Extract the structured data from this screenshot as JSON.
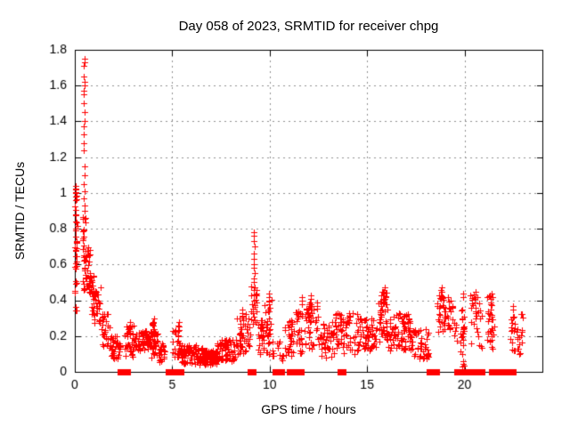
{
  "chart_data": {
    "type": "scatter",
    "title": "Day 058 of 2023, SRMTID for receiver chpg",
    "xlabel": "GPS time / hours",
    "ylabel": "SRMTID / TECUs",
    "series_name": "SRMTID",
    "xlim": [
      0,
      24
    ],
    "ylim": [
      0,
      1.8
    ],
    "xticks": [
      0,
      5,
      10,
      15,
      20
    ],
    "xtick_labels": [
      "0",
      "5",
      "10",
      "15",
      "20"
    ],
    "yticks": [
      0,
      0.2,
      0.4,
      0.6,
      0.8,
      1,
      1.2,
      1.4,
      1.6,
      1.8
    ],
    "ytick_labels": [
      "0",
      "0.2",
      "0.4",
      "0.6",
      "0.8",
      "1",
      "1.2",
      "1.4",
      "1.6",
      "1.8"
    ],
    "grid": true,
    "grid_style": "dashed",
    "grid_color": "#909090",
    "legend": "none",
    "marker": "plus",
    "marker_color": "#ff0000",
    "marker_size": 7,
    "axis_color": "#000000",
    "seed": 58,
    "columns": [
      {
        "x": 0.05,
        "ys": [
          1.04,
          1.02,
          1.0,
          0.98,
          0.96
        ]
      },
      {
        "x": 0.47,
        "ys": [
          1.75,
          1.73,
          1.71,
          1.65,
          1.62,
          1.6,
          1.57,
          1.55,
          1.5,
          1.45,
          1.4,
          1.37,
          1.33,
          1.28,
          1.24,
          1.15,
          1.1,
          1.05,
          1.01,
          0.97,
          0.93,
          0.9
        ]
      },
      {
        "x": 2.78,
        "ys": [
          0.28,
          0.26,
          0.24,
          0.22
        ]
      },
      {
        "x": 4.05,
        "ys": [
          0.3,
          0.28,
          0.26,
          0.23,
          0.2,
          0.17,
          0.14,
          0.1
        ]
      },
      {
        "x": 5.3,
        "ys": [
          0.28,
          0.26,
          0.23,
          0.2,
          0.17
        ]
      },
      {
        "x": 8.62,
        "ys": [
          0.35,
          0.33,
          0.31,
          0.29,
          0.27
        ]
      },
      {
        "x": 9.2,
        "ys": [
          0.78,
          0.76,
          0.73,
          0.7,
          0.66,
          0.63,
          0.6,
          0.58,
          0.55,
          0.52,
          0.5,
          0.47
        ]
      },
      {
        "x": 10.0,
        "ys": [
          0.44,
          0.42,
          0.4,
          0.38
        ]
      },
      {
        "x": 11.62,
        "ys": [
          0.42,
          0.4,
          0.38
        ]
      },
      {
        "x": 12.1,
        "ys": [
          0.43,
          0.41,
          0.39,
          0.37,
          0.35
        ]
      },
      {
        "x": 14.1,
        "ys": [
          0.33,
          0.31,
          0.29
        ]
      },
      {
        "x": 15.85,
        "ys": [
          0.47,
          0.45,
          0.43
        ]
      },
      {
        "x": 18.8,
        "ys": [
          0.47,
          0.45,
          0.43,
          0.41
        ]
      },
      {
        "x": 19.9,
        "ys": [
          0.44,
          0.42,
          0.35,
          0.3,
          0.25,
          0.2,
          0.15,
          0.1,
          0.06,
          0.03
        ]
      },
      {
        "x": 20.55,
        "ys": [
          0.45,
          0.42,
          0.39,
          0.36,
          0.33,
          0.3
        ]
      },
      {
        "x": 21.35,
        "ys": [
          0.44,
          0.41,
          0.38,
          0.35
        ]
      },
      {
        "x": 22.5,
        "ys": [
          0.37,
          0.35
        ]
      }
    ],
    "bands": [
      {
        "x0": 0.0,
        "x1": 0.12,
        "y0": 0.34,
        "y1": 1.05,
        "n": 40
      },
      {
        "x0": 0.38,
        "x1": 0.56,
        "y0": 0.44,
        "y1": 0.88,
        "n": 32
      },
      {
        "x0": 0.55,
        "x1": 0.8,
        "y0": 0.44,
        "y1": 0.72,
        "n": 22
      },
      {
        "x0": 0.75,
        "x1": 1.0,
        "y0": 0.32,
        "y1": 0.56,
        "n": 22
      },
      {
        "x0": 0.95,
        "x1": 1.35,
        "y0": 0.27,
        "y1": 0.48,
        "n": 30
      },
      {
        "x0": 1.35,
        "x1": 1.8,
        "y0": 0.13,
        "y1": 0.33,
        "n": 26
      },
      {
        "x0": 1.8,
        "x1": 2.35,
        "y0": 0.07,
        "y1": 0.2,
        "n": 40
      },
      {
        "x0": 2.55,
        "x1": 3.05,
        "y0": 0.08,
        "y1": 0.26,
        "n": 32
      },
      {
        "x0": 3.0,
        "x1": 3.9,
        "y0": 0.12,
        "y1": 0.23,
        "n": 60
      },
      {
        "x0": 3.9,
        "x1": 4.3,
        "y0": 0.06,
        "y1": 0.28,
        "n": 30
      },
      {
        "x0": 4.3,
        "x1": 4.65,
        "y0": 0.05,
        "y1": 0.16,
        "n": 22
      },
      {
        "x0": 5.0,
        "x1": 5.45,
        "y0": 0.08,
        "y1": 0.26,
        "n": 26
      },
      {
        "x0": 5.45,
        "x1": 6.6,
        "y0": 0.04,
        "y1": 0.15,
        "n": 85
      },
      {
        "x0": 6.6,
        "x1": 7.3,
        "y0": 0.04,
        "y1": 0.12,
        "n": 75
      },
      {
        "x0": 7.3,
        "x1": 8.3,
        "y0": 0.06,
        "y1": 0.18,
        "n": 70
      },
      {
        "x0": 8.3,
        "x1": 9.0,
        "y0": 0.1,
        "y1": 0.33,
        "n": 50
      },
      {
        "x0": 9.05,
        "x1": 9.35,
        "y0": 0.25,
        "y1": 0.48,
        "n": 24
      },
      {
        "x0": 9.35,
        "x1": 9.7,
        "y0": 0.1,
        "y1": 0.3,
        "n": 24
      },
      {
        "x0": 9.7,
        "x1": 10.15,
        "y0": 0.1,
        "y1": 0.42,
        "n": 30
      },
      {
        "x0": 10.15,
        "x1": 10.65,
        "y0": 0.05,
        "y1": 0.18,
        "n": 12
      },
      {
        "x0": 10.65,
        "x1": 11.2,
        "y0": 0.08,
        "y1": 0.3,
        "n": 30
      },
      {
        "x0": 11.2,
        "x1": 11.9,
        "y0": 0.1,
        "y1": 0.35,
        "n": 36
      },
      {
        "x0": 11.9,
        "x1": 12.5,
        "y0": 0.13,
        "y1": 0.4,
        "n": 40
      },
      {
        "x0": 12.5,
        "x1": 13.3,
        "y0": 0.08,
        "y1": 0.28,
        "n": 44
      },
      {
        "x0": 13.3,
        "x1": 14.5,
        "y0": 0.1,
        "y1": 0.33,
        "n": 62
      },
      {
        "x0": 14.5,
        "x1": 15.5,
        "y0": 0.12,
        "y1": 0.3,
        "n": 60
      },
      {
        "x0": 15.6,
        "x1": 16.05,
        "y0": 0.15,
        "y1": 0.44,
        "n": 40
      },
      {
        "x0": 15.75,
        "x1": 16.0,
        "y0": 0.36,
        "y1": 0.46,
        "n": 14
      },
      {
        "x0": 16.05,
        "x1": 17.3,
        "y0": 0.12,
        "y1": 0.33,
        "n": 80
      },
      {
        "x0": 17.3,
        "x1": 18.15,
        "y0": 0.07,
        "y1": 0.25,
        "n": 44
      },
      {
        "x0": 18.6,
        "x1": 19.4,
        "y0": 0.22,
        "y1": 0.42,
        "n": 42
      },
      {
        "x0": 18.7,
        "x1": 18.95,
        "y0": 0.4,
        "y1": 0.47,
        "n": 8
      },
      {
        "x0": 19.4,
        "x1": 19.65,
        "y0": 0.12,
        "y1": 0.3,
        "n": 8
      },
      {
        "x0": 19.75,
        "x1": 20.0,
        "y0": 0.02,
        "y1": 0.35,
        "n": 18
      },
      {
        "x0": 20.3,
        "x1": 20.9,
        "y0": 0.12,
        "y1": 0.44,
        "n": 26
      },
      {
        "x0": 21.15,
        "x1": 21.55,
        "y0": 0.1,
        "y1": 0.44,
        "n": 30
      },
      {
        "x0": 22.35,
        "x1": 23.1,
        "y0": 0.1,
        "y1": 0.35,
        "n": 34
      }
    ],
    "zero_segments": [
      {
        "x0": 2.32,
        "x1": 2.45
      },
      {
        "x0": 2.55,
        "x1": 2.68
      },
      {
        "x0": 4.78,
        "x1": 5.05
      },
      {
        "x0": 5.3,
        "x1": 5.42
      },
      {
        "x0": 9.0,
        "x1": 9.12
      },
      {
        "x0": 10.3,
        "x1": 10.42
      },
      {
        "x0": 10.5,
        "x1": 10.62
      },
      {
        "x0": 11.0,
        "x1": 11.12
      },
      {
        "x0": 11.22,
        "x1": 11.34
      },
      {
        "x0": 11.48,
        "x1": 11.6
      },
      {
        "x0": 13.62,
        "x1": 13.74
      },
      {
        "x0": 18.2,
        "x1": 18.33
      },
      {
        "x0": 18.42,
        "x1": 18.55
      },
      {
        "x0": 19.62,
        "x1": 19.75
      },
      {
        "x0": 19.8,
        "x1": 20.05
      },
      {
        "x0": 20.28,
        "x1": 20.42
      },
      {
        "x0": 20.5,
        "x1": 20.64
      },
      {
        "x0": 20.78,
        "x1": 20.9
      },
      {
        "x0": 21.38,
        "x1": 22.48
      }
    ]
  }
}
